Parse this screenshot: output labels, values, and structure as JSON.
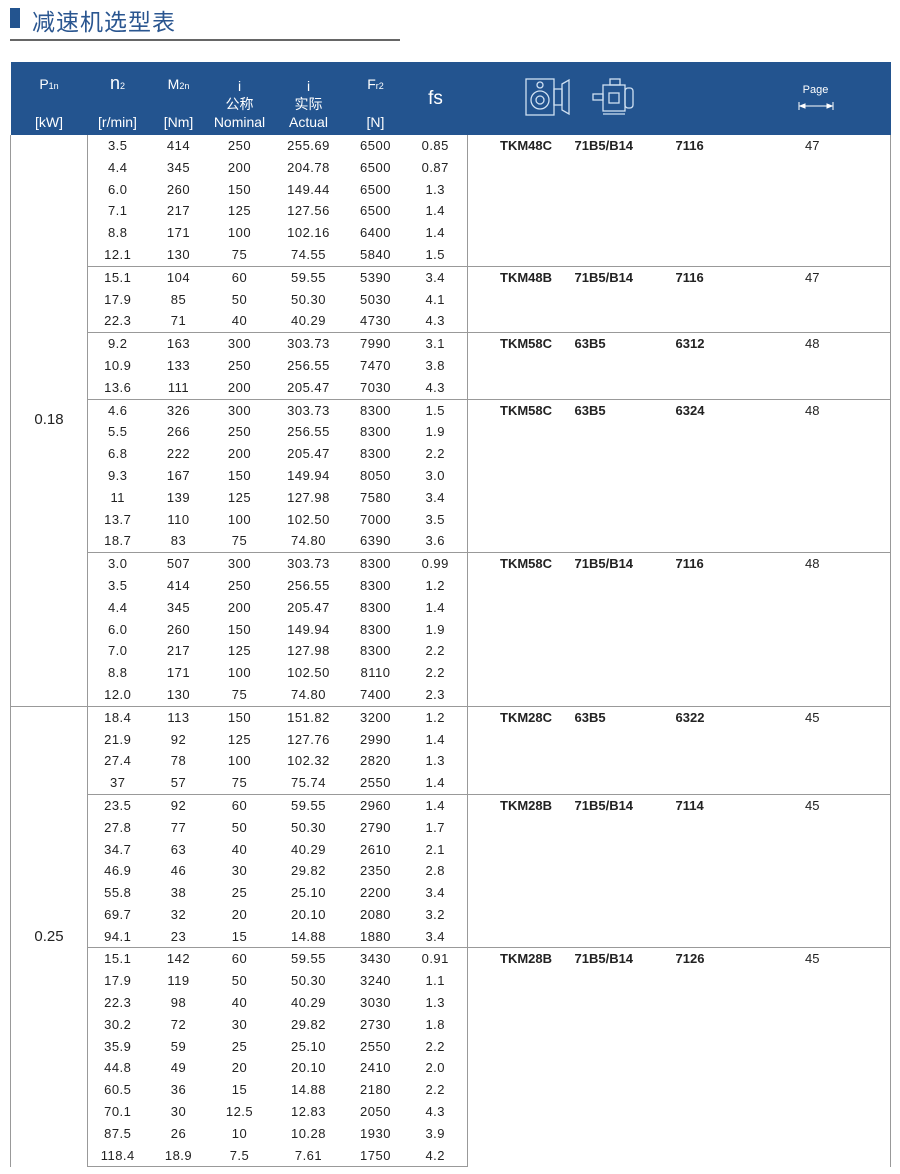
{
  "page_title": "减速机选型表",
  "header": {
    "p1n": {
      "sym": "P",
      "sub": "1n",
      "unit": "[kW]"
    },
    "n2": {
      "sym": "n",
      "sub": "2",
      "unit": "[r/min]"
    },
    "m2n": {
      "sym": "M",
      "sub": "2n",
      "unit": "[Nm]"
    },
    "i_nominal": {
      "sym": "i",
      "cn": "公称",
      "en": "Nominal"
    },
    "i_actual": {
      "sym": "i",
      "cn": "实际",
      "en": "Actual"
    },
    "fr2": {
      "sym": "F",
      "sub": "r2",
      "unit": "[N]"
    },
    "fs": "fs",
    "gearbox_icon": "worm-gearbox-icon",
    "motor_icon": "electric-motor-icon",
    "page": "Page",
    "header_color": "#23548f"
  },
  "powers": [
    {
      "p1n": "0.18",
      "groups": [
        {
          "model": "TKM48C",
          "motor": "71B5/B14",
          "code": "7116",
          "page": "47",
          "rows": [
            [
              "3.5",
              "414",
              "250",
              "255.69",
              "6500",
              "0.85"
            ],
            [
              "4.4",
              "345",
              "200",
              "204.78",
              "6500",
              "0.87"
            ],
            [
              "6.0",
              "260",
              "150",
              "149.44",
              "6500",
              "1.3"
            ],
            [
              "7.1",
              "217",
              "125",
              "127.56",
              "6500",
              "1.4"
            ],
            [
              "8.8",
              "171",
              "100",
              "102.16",
              "6400",
              "1.4"
            ],
            [
              "12.1",
              "130",
              "75",
              "74.55",
              "5840",
              "1.5"
            ]
          ]
        },
        {
          "model": "TKM48B",
          "motor": "71B5/B14",
          "code": "7116",
          "page": "47",
          "rows": [
            [
              "15.1",
              "104",
              "60",
              "59.55",
              "5390",
              "3.4"
            ],
            [
              "17.9",
              "85",
              "50",
              "50.30",
              "5030",
              "4.1"
            ],
            [
              "22.3",
              "71",
              "40",
              "40.29",
              "4730",
              "4.3"
            ]
          ]
        },
        {
          "model": "TKM58C",
          "motor": "63B5",
          "code": "6312",
          "page": "48",
          "rows": [
            [
              "9.2",
              "163",
              "300",
              "303.73",
              "7990",
              "3.1"
            ],
            [
              "10.9",
              "133",
              "250",
              "256.55",
              "7470",
              "3.8"
            ],
            [
              "13.6",
              "111",
              "200",
              "205.47",
              "7030",
              "4.3"
            ]
          ]
        },
        {
          "model": "TKM58C",
          "motor": "63B5",
          "code": "6324",
          "page": "48",
          "rows": [
            [
              "4.6",
              "326",
              "300",
              "303.73",
              "8300",
              "1.5"
            ],
            [
              "5.5",
              "266",
              "250",
              "256.55",
              "8300",
              "1.9"
            ],
            [
              "6.8",
              "222",
              "200",
              "205.47",
              "8300",
              "2.2"
            ],
            [
              "9.3",
              "167",
              "150",
              "149.94",
              "8050",
              "3.0"
            ],
            [
              "11",
              "139",
              "125",
              "127.98",
              "7580",
              "3.4"
            ],
            [
              "13.7",
              "110",
              "100",
              "102.50",
              "7000",
              "3.5"
            ],
            [
              "18.7",
              "83",
              "75",
              "74.80",
              "6390",
              "3.6"
            ]
          ]
        },
        {
          "model": "TKM58C",
          "motor": "71B5/B14",
          "code": "7116",
          "page": "48",
          "rows": [
            [
              "3.0",
              "507",
              "300",
              "303.73",
              "8300",
              "0.99"
            ],
            [
              "3.5",
              "414",
              "250",
              "256.55",
              "8300",
              "1.2"
            ],
            [
              "4.4",
              "345",
              "200",
              "205.47",
              "8300",
              "1.4"
            ],
            [
              "6.0",
              "260",
              "150",
              "149.94",
              "8300",
              "1.9"
            ],
            [
              "7.0",
              "217",
              "125",
              "127.98",
              "8300",
              "2.2"
            ],
            [
              "8.8",
              "171",
              "100",
              "102.50",
              "8110",
              "2.2"
            ],
            [
              "12.0",
              "130",
              "75",
              "74.80",
              "7400",
              "2.3"
            ]
          ]
        }
      ]
    },
    {
      "p1n": "0.25",
      "groups": [
        {
          "model": "TKM28C",
          "motor": "63B5",
          "code": "6322",
          "page": "45",
          "rows": [
            [
              "18.4",
              "113",
              "150",
              "151.82",
              "3200",
              "1.2"
            ],
            [
              "21.9",
              "92",
              "125",
              "127.76",
              "2990",
              "1.4"
            ],
            [
              "27.4",
              "78",
              "100",
              "102.32",
              "2820",
              "1.3"
            ],
            [
              "37",
              "57",
              "75",
              "75.74",
              "2550",
              "1.4"
            ]
          ]
        },
        {
          "model": "TKM28B",
          "motor": "71B5/B14",
          "code": "7114",
          "page": "45",
          "rows": [
            [
              "23.5",
              "92",
              "60",
              "59.55",
              "2960",
              "1.4"
            ],
            [
              "27.8",
              "77",
              "50",
              "50.30",
              "2790",
              "1.7"
            ],
            [
              "34.7",
              "63",
              "40",
              "40.29",
              "2610",
              "2.1"
            ],
            [
              "46.9",
              "46",
              "30",
              "29.82",
              "2350",
              "2.8"
            ],
            [
              "55.8",
              "38",
              "25",
              "25.10",
              "2200",
              "3.4"
            ],
            [
              "69.7",
              "32",
              "20",
              "20.10",
              "2080",
              "3.2"
            ],
            [
              "94.1",
              "23",
              "15",
              "14.88",
              "1880",
              "3.4"
            ]
          ]
        },
        {
          "model": "TKM28B",
          "motor": "71B5/B14",
          "code": "7126",
          "page": "45",
          "rows": [
            [
              "15.1",
              "142",
              "60",
              "59.55",
              "3430",
              "0.91"
            ],
            [
              "17.9",
              "119",
              "50",
              "50.30",
              "3240",
              "1.1"
            ],
            [
              "22.3",
              "98",
              "40",
              "40.29",
              "3030",
              "1.3"
            ],
            [
              "30.2",
              "72",
              "30",
              "29.82",
              "2730",
              "1.8"
            ],
            [
              "35.9",
              "59",
              "25",
              "25.10",
              "2550",
              "2.2"
            ],
            [
              "44.8",
              "49",
              "20",
              "20.10",
              "2410",
              "2.0"
            ],
            [
              "60.5",
              "36",
              "15",
              "14.88",
              "2180",
              "2.2"
            ],
            [
              "70.1",
              "30",
              "12.5",
              "12.83",
              "2050",
              "4.3"
            ],
            [
              "87.5",
              "26",
              "10",
              "10.28",
              "1930",
              "3.9"
            ],
            [
              "118.4",
              "18.9",
              "7.5",
              "7.61",
              "1750",
              "4.2"
            ]
          ]
        }
      ]
    }
  ]
}
